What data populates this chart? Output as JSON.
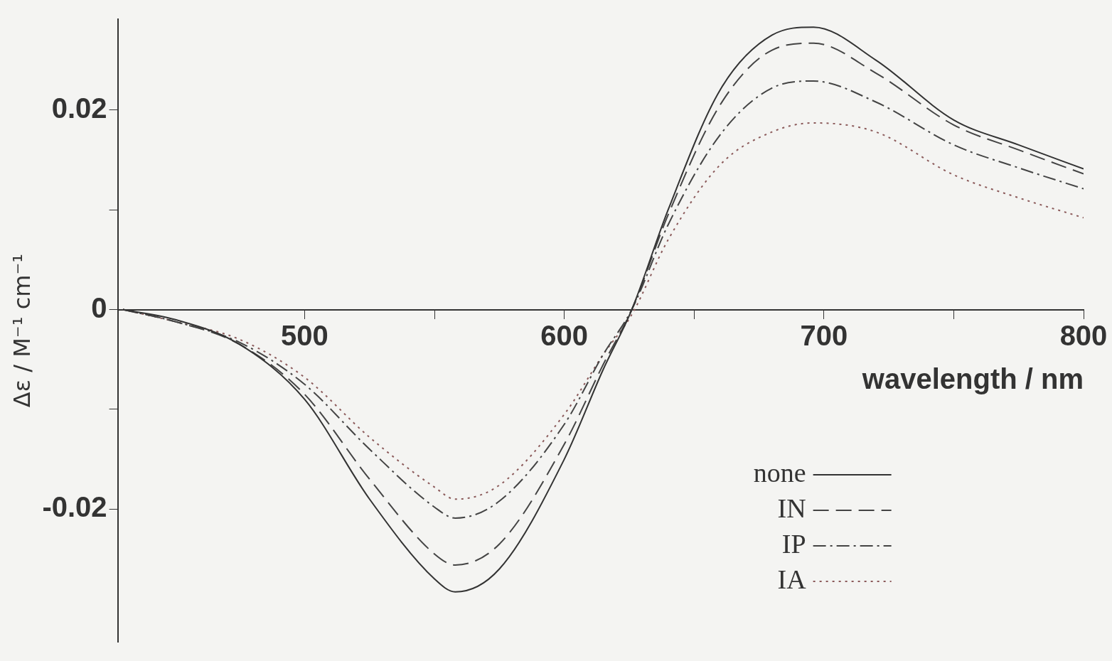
{
  "chart_data": {
    "type": "line",
    "xlabel": "wavelength / nm",
    "ylabel": "Δε / M⁻¹ cm⁻¹",
    "x": [
      430,
      450,
      475,
      500,
      525,
      550,
      558,
      575,
      600,
      615,
      626,
      640,
      660,
      680,
      696,
      720,
      750,
      775,
      800
    ],
    "xlim": [
      428,
      800
    ],
    "xticks": [
      500,
      {
        "value": 550,
        "label": null
      },
      600,
      {
        "value": 650,
        "label": null
      },
      700,
      {
        "value": 750,
        "label": null
      },
      800
    ],
    "ylim": [
      -0.0333,
      0.0291
    ],
    "yticks": [
      -0.02,
      {
        "value": -0.01,
        "label": null
      },
      0,
      {
        "value": 0.01,
        "label": null
      },
      0.02
    ],
    "grid": false,
    "legend": "bottom right",
    "marker": "none",
    "series": [
      {
        "name": "none",
        "color": "#333333",
        "line_style": "solid",
        "values": [
          0,
          -0.001,
          -0.0035,
          -0.009,
          -0.019,
          -0.027,
          -0.0283,
          -0.026,
          -0.015,
          -0.006,
          0,
          0.01,
          0.022,
          0.0275,
          0.0283,
          0.025,
          0.019,
          0.0165,
          0.0141
        ]
      },
      {
        "name": "IN",
        "color": "#444444",
        "line_style": "dashed",
        "values": [
          0,
          -0.0012,
          -0.0035,
          -0.0085,
          -0.017,
          -0.0245,
          -0.0256,
          -0.0235,
          -0.0135,
          -0.0055,
          0,
          0.0095,
          0.0205,
          0.026,
          0.0267,
          0.0237,
          0.0185,
          0.016,
          0.0136
        ]
      },
      {
        "name": "IP",
        "color": "#444444",
        "line_style": "dashdot",
        "values": [
          0,
          -0.0012,
          -0.0033,
          -0.0075,
          -0.014,
          -0.0198,
          -0.0209,
          -0.0192,
          -0.0115,
          -0.0045,
          0,
          0.0085,
          0.0175,
          0.0222,
          0.0229,
          0.0208,
          0.0165,
          0.0142,
          0.0121
        ]
      },
      {
        "name": "IA",
        "color": "#8b5a5a",
        "line_style": "dotted",
        "values": [
          0,
          -0.0012,
          -0.003,
          -0.0068,
          -0.0128,
          -0.0178,
          -0.019,
          -0.0176,
          -0.0105,
          -0.0045,
          -0.0005,
          0.007,
          0.0145,
          0.0178,
          0.0187,
          0.0178,
          0.0135,
          0.0112,
          0.0092
        ]
      }
    ]
  }
}
